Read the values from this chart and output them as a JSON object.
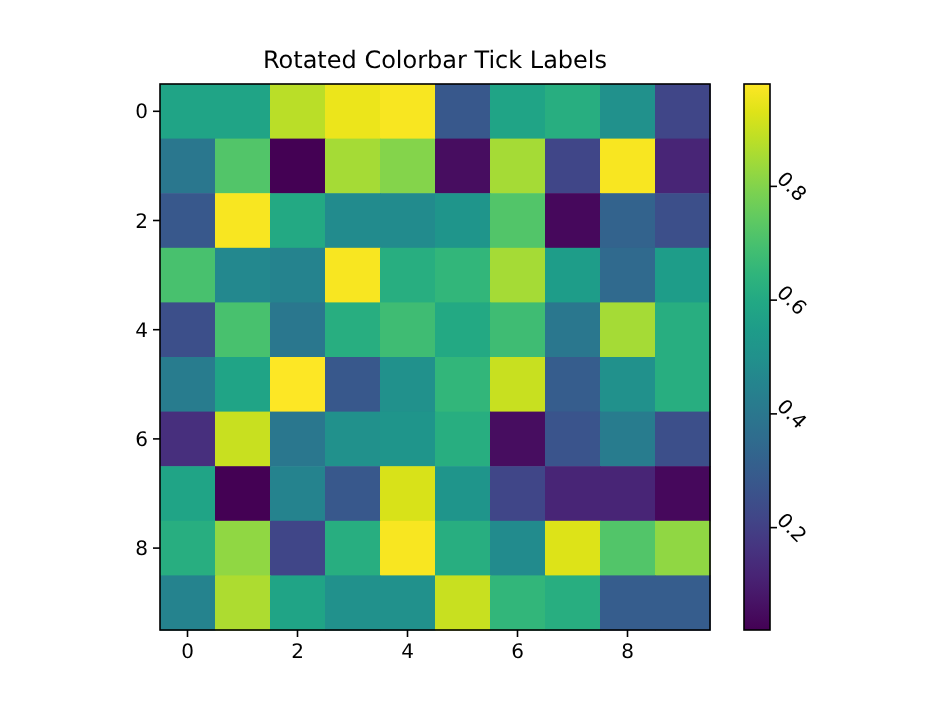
{
  "chart_data": {
    "type": "heatmap",
    "title": "Rotated Colorbar Tick Labels",
    "categories": [
      "0",
      null,
      "2",
      null,
      "4",
      null,
      "6",
      null,
      "8",
      null
    ],
    "y_categories": [
      "0",
      null,
      "2",
      null,
      "4",
      null,
      "6",
      null,
      "8",
      null
    ],
    "cells": [
      [
        0.58,
        0.58,
        0.88,
        0.95,
        0.97,
        0.28,
        0.58,
        0.62,
        0.5,
        0.22
      ],
      [
        0.4,
        0.72,
        0.02,
        0.85,
        0.8,
        0.05,
        0.85,
        0.22,
        0.97,
        0.12
      ],
      [
        0.28,
        0.97,
        0.6,
        0.48,
        0.48,
        0.52,
        0.72,
        0.04,
        0.32,
        0.25
      ],
      [
        0.7,
        0.47,
        0.45,
        0.97,
        0.62,
        0.65,
        0.85,
        0.55,
        0.35,
        0.55
      ],
      [
        0.25,
        0.7,
        0.4,
        0.62,
        0.68,
        0.6,
        0.68,
        0.4,
        0.85,
        0.62
      ],
      [
        0.42,
        0.58,
        0.98,
        0.28,
        0.5,
        0.65,
        0.9,
        0.3,
        0.5,
        0.62
      ],
      [
        0.15,
        0.9,
        0.4,
        0.5,
        0.52,
        0.62,
        0.05,
        0.27,
        0.42,
        0.25
      ],
      [
        0.58,
        0.02,
        0.45,
        0.28,
        0.92,
        0.52,
        0.22,
        0.12,
        0.12,
        0.04
      ],
      [
        0.62,
        0.82,
        0.22,
        0.62,
        0.97,
        0.62,
        0.48,
        0.93,
        0.72,
        0.82
      ],
      [
        0.45,
        0.86,
        0.58,
        0.5,
        0.5,
        0.9,
        0.65,
        0.62,
        0.3,
        0.3
      ]
    ],
    "clim": [
      0.02,
      0.98
    ],
    "cticks": [
      {
        "value": 0.2,
        "label": "0.2"
      },
      {
        "value": 0.4,
        "label": "0.4"
      },
      {
        "value": 0.6,
        "label": "0.6"
      },
      {
        "value": 0.8,
        "label": "0.8"
      }
    ]
  }
}
